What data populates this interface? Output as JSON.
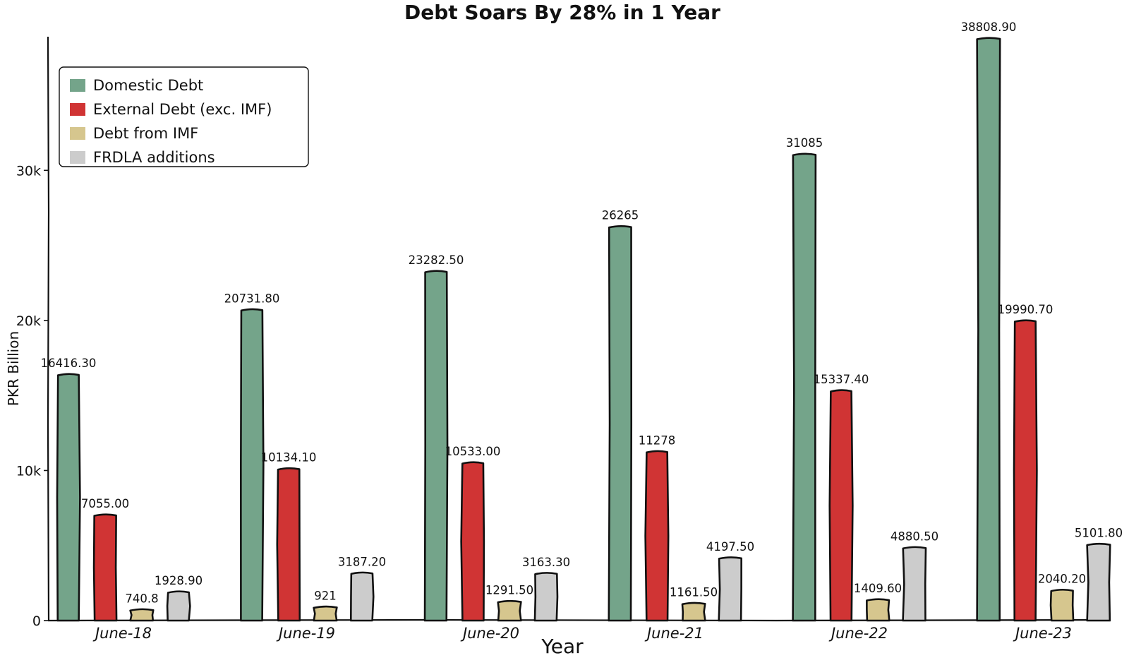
{
  "chart_data": {
    "type": "bar",
    "title": "Debt Soars By 28% in 1 Year",
    "xlabel": "Year",
    "ylabel": "PKR Billion",
    "categories": [
      "June-18",
      "June-19",
      "June-20",
      "June-21",
      "June-22",
      "June-23"
    ],
    "ylim": [
      0,
      39000
    ],
    "yticks": [
      {
        "value": 0,
        "label": "0"
      },
      {
        "value": 10000,
        "label": "10k"
      },
      {
        "value": 20000,
        "label": "20k"
      },
      {
        "value": 30000,
        "label": "30k"
      }
    ],
    "grid": false,
    "legend_position": "top-left",
    "series": [
      {
        "name": "Domestic Debt",
        "color": "#74a48a",
        "values": [
          16416.3,
          20731.8,
          23282.5,
          26265,
          31085,
          38808.9
        ],
        "labels": [
          "16416.30",
          "20731.80",
          "23282.50",
          "26265",
          "31085",
          "38808.90"
        ]
      },
      {
        "name": "External Debt (exc. IMF)",
        "color": "#d03434",
        "values": [
          7055.0,
          10134.1,
          10533.0,
          11278,
          15337.4,
          19990.7
        ],
        "labels": [
          "7055.00",
          "10134.10",
          "10533.00",
          "11278",
          "15337.40",
          "19990.70"
        ]
      },
      {
        "name": "Debt from IMF",
        "color": "#d6c68e",
        "values": [
          740.8,
          921,
          1291.5,
          1161.5,
          1409.6,
          2040.2
        ],
        "labels": [
          "740.8",
          "921",
          "1291.50",
          "1161.50",
          "1409.60",
          "2040.20"
        ]
      },
      {
        "name": "FRDLA additions",
        "color": "#cccccc",
        "values": [
          1928.9,
          3187.2,
          3163.3,
          4197.5,
          4880.5,
          5101.8
        ],
        "labels": [
          "1928.90",
          "3187.20",
          "3163.30",
          "4197.50",
          "4880.50",
          "5101.80"
        ]
      }
    ]
  }
}
